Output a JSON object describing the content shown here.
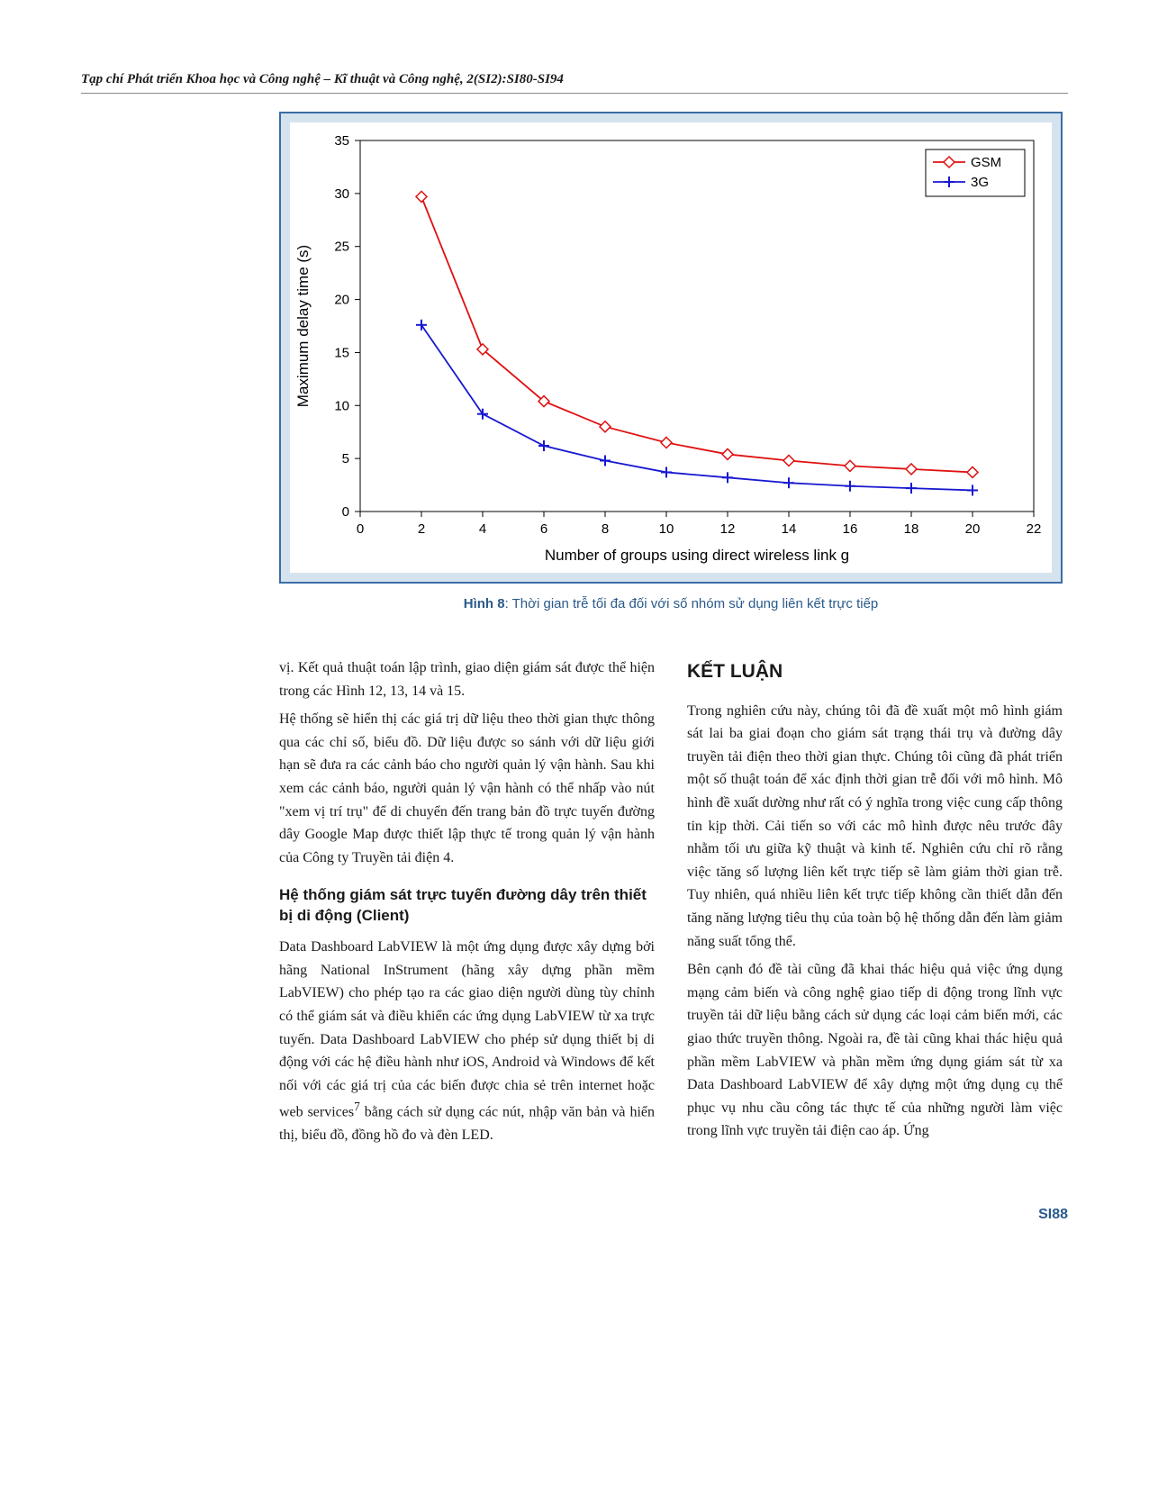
{
  "journal_header": "Tạp chí Phát triển Khoa học và Công nghệ – Kĩ thuật và Công nghệ, 2(SI2):SI80-SI94",
  "figure": {
    "caption_label": "Hình 8",
    "caption_text": ": Thời gian trễ tối đa đối với số nhóm sử dụng liên kết trực tiếp",
    "chart": {
      "type": "line",
      "xlabel": "Number of groups using direct wireless link g",
      "ylabel": "Maximum delay time (s)",
      "xlabel_fontsize": 17,
      "ylabel_fontsize": 17,
      "tick_fontsize": 15,
      "xlim": [
        0,
        22
      ],
      "ylim": [
        0,
        35
      ],
      "xticks": [
        0,
        2,
        4,
        6,
        8,
        10,
        12,
        14,
        16,
        18,
        20,
        22
      ],
      "yticks": [
        0,
        5,
        10,
        15,
        20,
        25,
        30,
        35
      ],
      "background_color": "#ffffff",
      "series": [
        {
          "name": "GSM",
          "color": "#e01010",
          "marker": "diamond",
          "line_width": 1.8,
          "marker_size": 6,
          "x": [
            2,
            4,
            6,
            8,
            10,
            12,
            14,
            16,
            18,
            20
          ],
          "y": [
            29.7,
            15.3,
            10.4,
            8.0,
            6.5,
            5.4,
            4.8,
            4.3,
            4.0,
            3.7
          ]
        },
        {
          "name": "3G",
          "color": "#1818d0",
          "marker": "plus",
          "line_width": 1.8,
          "marker_size": 6,
          "x": [
            2,
            4,
            6,
            8,
            10,
            12,
            14,
            16,
            18,
            20
          ],
          "y": [
            17.6,
            9.2,
            6.2,
            4.8,
            3.7,
            3.2,
            2.7,
            2.4,
            2.2,
            2.0
          ]
        }
      ],
      "legend": {
        "position": "top-right",
        "border_color": "#000000",
        "bg_color": "#ffffff",
        "fontsize": 15
      }
    }
  },
  "left_col": {
    "para1": "vị. Kết quả thuật toán lập trình, giao diện giám sát được thể hiện trong các Hình 12, 13, 14 và 15.",
    "para2": "Hệ thống sẽ hiển thị các giá trị dữ liệu theo thời gian thực thông qua các chỉ số, biểu đồ. Dữ liệu được so sánh với dữ liệu giới hạn sẽ đưa ra các cảnh báo cho người quản lý vận hành. Sau khi xem các cảnh báo, người quản lý vận hành có thể nhấp vào nút \"xem vị trí trụ\" để di chuyển đến trang bản đồ trực tuyến đường dây Google Map được thiết lập thực tế trong quản lý vận hành của Công ty Truyền tải điện 4.",
    "heading": "Hệ thống giám sát trực tuyến đường dây trên thiết bị di động (Client)",
    "para3a": "Data Dashboard LabVIEW là một ứng dụng được xây dựng bởi hãng National InStrument (hãng xây dựng phần mềm LabVIEW) cho phép tạo ra các giao diện người dùng tùy chỉnh có thể giám sát và điều khiển các ứng dụng LabVIEW từ xa trực tuyến. Data Dashboard LabVIEW cho phép sử dụng thiết bị di động với các hệ điều hành như iOS, Android và Windows để kết nối với các giá trị của các biến được chia sẻ trên internet hoặc web services",
    "sup": "7",
    "para3b": " bằng cách sử dụng các nút, nhập văn bản và hiển thị, biểu đồ, đồng hồ đo và đèn LED."
  },
  "right_col": {
    "heading": "KẾT LUẬN",
    "para1": "Trong nghiên cứu này, chúng tôi đã đề xuất một mô hình giám sát lai ba giai đoạn cho giám sát trạng thái trụ và đường dây truyền tải điện theo thời gian thực. Chúng tôi cũng đã phát triển một số thuật toán để xác định thời gian trễ đối với mô hình. Mô hình đề xuất dường như rất có ý nghĩa trong việc cung cấp thông tin kịp thời. Cải tiến so với các mô hình được nêu trước đây nhằm tối ưu giữa kỹ thuật và kinh tế. Nghiên cứu chỉ rõ rằng việc tăng số lượng liên kết trực tiếp sẽ làm giảm thời gian trễ. Tuy nhiên, quá nhiều liên kết trực tiếp không cần thiết dẫn đến tăng năng lượng tiêu thụ của toàn bộ hệ thống dẫn đến làm giảm năng suất tổng thể.",
    "para2": "Bên cạnh đó đề tài cũng đã khai thác hiệu quả việc ứng dụng mạng cảm biến và công nghệ giao tiếp di động trong lĩnh vực truyền tải dữ liệu bằng cách sử dụng các loại cảm biến mới, các giao thức truyền thông. Ngoài ra, đề tài cũng khai thác hiệu quả phần mềm LabVIEW và phần mềm ứng dụng giám sát từ xa Data Dashboard LabVIEW để xây dựng một ứng dụng cụ thể phục vụ nhu cầu công tác thực tế của những người làm việc trong lĩnh vực truyền tải điện cao áp. Ứng"
  },
  "page_number": "SI88"
}
